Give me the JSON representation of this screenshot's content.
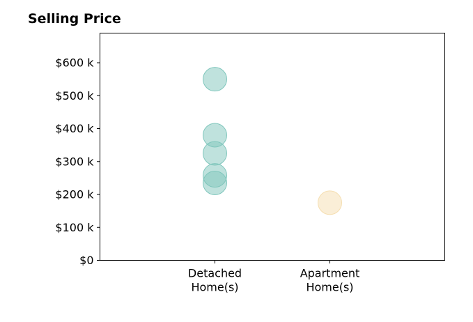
{
  "chart_data": {
    "type": "scatter",
    "title": "Selling Price",
    "xlabel": "",
    "ylabel": "",
    "categories": [
      "Detached\nHome(s)",
      "Apartment\nHome(s)"
    ],
    "xlim": [
      -1,
      2
    ],
    "ylim": [
      0,
      690
    ],
    "yticks": [
      0,
      100,
      200,
      300,
      400,
      500,
      600
    ],
    "ytick_labels": [
      "$0",
      "$100 k",
      "$200 k",
      "$300 k",
      "$400 k",
      "$500 k",
      "$600 k"
    ],
    "grid": false,
    "series": [
      {
        "category_index": 0,
        "color": "#7fc6bc",
        "values": [
          550,
          380,
          325,
          258,
          235
        ]
      },
      {
        "category_index": 1,
        "color": "#f5deb0",
        "values": [
          175
        ]
      }
    ]
  }
}
